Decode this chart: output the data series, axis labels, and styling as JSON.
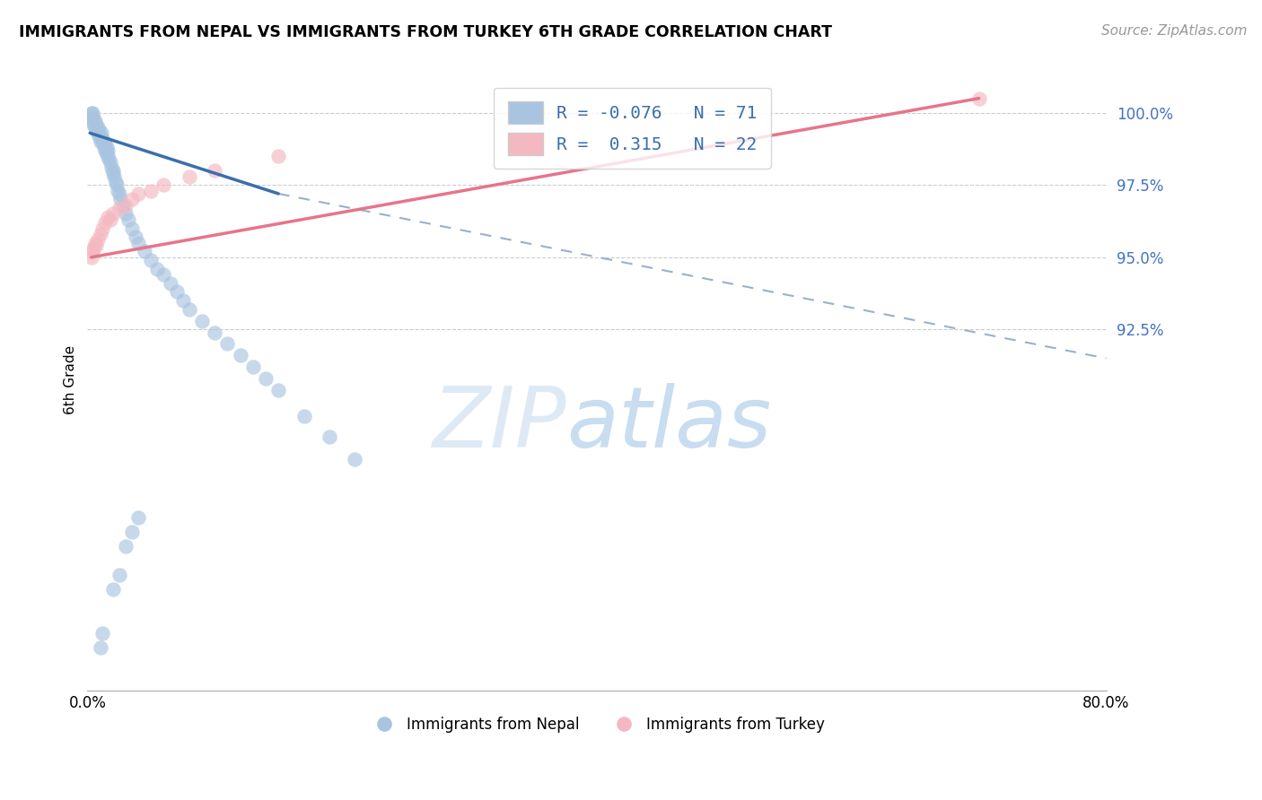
{
  "title": "IMMIGRANTS FROM NEPAL VS IMMIGRANTS FROM TURKEY 6TH GRADE CORRELATION CHART",
  "source": "Source: ZipAtlas.com",
  "ylabel": "6th Grade",
  "legend_nepal_R": "-0.076",
  "legend_nepal_N": "71",
  "legend_turkey_R": "0.315",
  "legend_turkey_N": "22",
  "nepal_color": "#a8c4e0",
  "turkey_color": "#f4b8c1",
  "nepal_line_color": "#3a6fad",
  "turkey_line_color": "#e8748a",
  "dashed_line_color": "#9ab0cc",
  "grid_color": "#cccccc",
  "x_min": 0.0,
  "x_max": 80.0,
  "y_min": 80.0,
  "y_max": 101.5,
  "y_ticks": [
    92.5,
    95.0,
    97.5,
    100.0
  ],
  "y_labels": [
    "92.5%",
    "95.0%",
    "97.5%",
    "100.0%"
  ],
  "x_ticks": [
    0,
    80
  ],
  "x_labels": [
    "0.0%",
    "80.0%"
  ],
  "nepal_x": [
    0.2,
    0.3,
    0.3,
    0.4,
    0.4,
    0.5,
    0.5,
    0.6,
    0.6,
    0.7,
    0.7,
    0.8,
    0.8,
    0.9,
    0.9,
    1.0,
    1.0,
    1.1,
    1.1,
    1.2,
    1.2,
    1.3,
    1.3,
    1.4,
    1.4,
    1.5,
    1.5,
    1.6,
    1.6,
    1.7,
    1.8,
    1.9,
    2.0,
    2.0,
    2.1,
    2.2,
    2.3,
    2.4,
    2.5,
    2.6,
    2.8,
    3.0,
    3.2,
    3.5,
    3.8,
    4.0,
    4.5,
    5.0,
    5.5,
    6.0,
    6.5,
    7.0,
    7.5,
    8.0,
    9.0,
    10.0,
    11.0,
    12.0,
    13.0,
    14.0,
    15.0,
    17.0,
    19.0,
    21.0,
    1.0,
    1.2,
    2.0,
    2.5,
    3.0,
    3.5,
    4.0
  ],
  "nepal_y": [
    99.8,
    100.0,
    99.9,
    99.7,
    100.0,
    99.6,
    99.8,
    99.5,
    99.7,
    99.4,
    99.6,
    99.3,
    99.5,
    99.2,
    99.4,
    99.0,
    99.2,
    99.1,
    99.3,
    99.0,
    99.1,
    98.8,
    99.0,
    98.7,
    98.9,
    98.6,
    98.8,
    98.5,
    98.7,
    98.4,
    98.3,
    98.1,
    97.9,
    98.0,
    97.8,
    97.6,
    97.5,
    97.3,
    97.2,
    97.0,
    96.8,
    96.5,
    96.3,
    96.0,
    95.7,
    95.5,
    95.2,
    94.9,
    94.6,
    94.4,
    94.1,
    93.8,
    93.5,
    93.2,
    92.8,
    92.4,
    92.0,
    91.6,
    91.2,
    90.8,
    90.4,
    89.5,
    88.8,
    88.0,
    81.5,
    82.0,
    83.5,
    84.0,
    85.0,
    85.5,
    86.0
  ],
  "turkey_x": [
    0.3,
    0.4,
    0.5,
    0.6,
    0.7,
    0.8,
    1.0,
    1.2,
    1.4,
    1.6,
    1.8,
    2.0,
    2.5,
    3.0,
    3.5,
    4.0,
    5.0,
    6.0,
    8.0,
    10.0,
    15.0,
    70.0
  ],
  "turkey_y": [
    95.0,
    95.2,
    95.3,
    95.5,
    95.4,
    95.6,
    95.8,
    96.0,
    96.2,
    96.4,
    96.3,
    96.5,
    96.7,
    96.8,
    97.0,
    97.2,
    97.3,
    97.5,
    97.8,
    98.0,
    98.5,
    100.5
  ],
  "nepal_trend_x1": 0.2,
  "nepal_trend_x2": 15.0,
  "nepal_trend_y1": 99.3,
  "nepal_trend_y2": 97.2,
  "nepal_dash_x1": 15.0,
  "nepal_dash_x2": 80.0,
  "nepal_dash_y1": 97.2,
  "nepal_dash_y2": 91.5,
  "turkey_trend_x1": 0.3,
  "turkey_trend_x2": 70.0,
  "turkey_trend_y1": 95.0,
  "turkey_trend_y2": 100.5
}
